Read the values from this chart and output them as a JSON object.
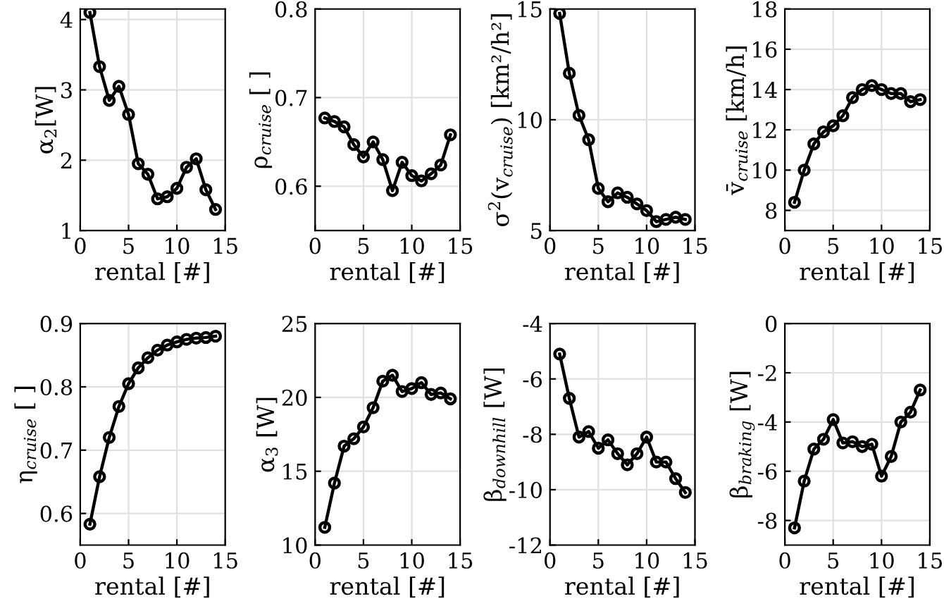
{
  "chart_data": [
    {
      "type": "line",
      "xlabel": "rental [#]",
      "ylabel": "α$_{2}$[W]",
      "x": [
        1,
        2,
        3,
        4,
        5,
        6,
        7,
        8,
        9,
        10,
        11,
        12,
        13,
        14
      ],
      "series": [
        {
          "color": "#000000",
          "values": [
            4.1,
            3.33,
            2.85,
            3.05,
            2.65,
            1.95,
            1.8,
            1.45,
            1.48,
            1.6,
            1.9,
            2.02,
            1.58,
            1.3
          ]
        }
      ],
      "xlim": [
        0,
        15
      ],
      "xticks": [
        0,
        5,
        10,
        15
      ],
      "ylim": [
        1,
        4.15
      ],
      "yticks": [
        1,
        2,
        3,
        4
      ],
      "grid": true,
      "marker": "circle",
      "line_style": "solid"
    },
    {
      "type": "line",
      "xlabel": "rental [#]",
      "ylabel": "ρ$_{cruise}$ [ ]",
      "x": [
        1,
        2,
        3,
        4,
        5,
        6,
        7,
        8,
        9,
        10,
        11,
        12,
        13,
        14
      ],
      "series": [
        {
          "color": "#000000",
          "values": [
            0.677,
            0.673,
            0.667,
            0.647,
            0.633,
            0.65,
            0.63,
            0.595,
            0.627,
            0.612,
            0.606,
            0.614,
            0.624,
            0.658
          ]
        }
      ],
      "xlim": [
        0,
        15
      ],
      "xticks": [
        0,
        5,
        10,
        15
      ],
      "ylim": [
        0.55,
        0.8
      ],
      "yticks": [
        0.6,
        0.7,
        0.8
      ],
      "grid": true,
      "marker": "circle",
      "line_style": "solid"
    },
    {
      "type": "line",
      "xlabel": "rental [#]",
      "ylabel": "σ$^{2}$(v$_{cruise}$) [km²/h²]",
      "x": [
        1,
        2,
        3,
        4,
        5,
        6,
        7,
        8,
        9,
        10,
        11,
        12,
        13,
        14
      ],
      "series": [
        {
          "color": "#000000",
          "values": [
            14.8,
            12.1,
            10.2,
            9.1,
            6.9,
            6.3,
            6.7,
            6.5,
            6.2,
            5.9,
            5.4,
            5.5,
            5.6,
            5.5
          ]
        }
      ],
      "xlim": [
        0,
        15
      ],
      "xticks": [
        0,
        5,
        10,
        15
      ],
      "ylim": [
        5,
        15
      ],
      "yticks": [
        5,
        10,
        15
      ],
      "grid": true,
      "marker": "circle",
      "line_style": "solid"
    },
    {
      "type": "line",
      "xlabel": "rental [#]",
      "ylabel": "v̄$_{cruise}$ [km/h]",
      "x": [
        1,
        2,
        3,
        4,
        5,
        6,
        7,
        8,
        9,
        10,
        11,
        12,
        13,
        14
      ],
      "series": [
        {
          "color": "#000000",
          "values": [
            8.4,
            10.0,
            11.3,
            11.9,
            12.2,
            12.7,
            13.6,
            14.0,
            14.2,
            14.0,
            13.8,
            13.8,
            13.4,
            13.5
          ]
        }
      ],
      "xlim": [
        0,
        15
      ],
      "xticks": [
        0,
        5,
        10,
        15
      ],
      "ylim": [
        7,
        18
      ],
      "yticks": [
        8,
        10,
        12,
        14,
        16,
        18
      ],
      "grid": true,
      "marker": "circle",
      "line_style": "solid"
    },
    {
      "type": "line",
      "xlabel": "rental [#]",
      "ylabel": "η$_{cruise}$ [ ]",
      "x": [
        1,
        2,
        3,
        4,
        5,
        6,
        7,
        8,
        9,
        10,
        11,
        12,
        13,
        14
      ],
      "series": [
        {
          "color": "#000000",
          "values": [
            0.583,
            0.658,
            0.72,
            0.769,
            0.805,
            0.83,
            0.846,
            0.858,
            0.866,
            0.871,
            0.875,
            0.877,
            0.878,
            0.88
          ]
        }
      ],
      "xlim": [
        0,
        15
      ],
      "xticks": [
        0,
        5,
        10,
        15
      ],
      "ylim": [
        0.55,
        0.9
      ],
      "yticks": [
        0.6,
        0.7,
        0.8,
        0.9
      ],
      "grid": true,
      "marker": "circle",
      "line_style": "solid"
    },
    {
      "type": "line",
      "xlabel": "rental [#]",
      "ylabel": "α$_{3}$ [W]",
      "x": [
        1,
        2,
        3,
        4,
        5,
        6,
        7,
        8,
        9,
        10,
        11,
        12,
        13,
        14
      ],
      "series": [
        {
          "color": "#000000",
          "values": [
            11.2,
            14.2,
            16.7,
            17.2,
            18.0,
            19.3,
            21.1,
            21.5,
            20.4,
            20.6,
            21.0,
            20.2,
            20.3,
            19.9
          ]
        }
      ],
      "xlim": [
        0,
        15
      ],
      "xticks": [
        0,
        5,
        10,
        15
      ],
      "ylim": [
        10,
        25
      ],
      "yticks": [
        10,
        15,
        20,
        25
      ],
      "grid": true,
      "marker": "circle",
      "line_style": "solid"
    },
    {
      "type": "line",
      "xlabel": "rental [#]",
      "ylabel": "β$_{downhill}$ [W]",
      "x": [
        1,
        2,
        3,
        4,
        5,
        6,
        7,
        8,
        9,
        10,
        11,
        12,
        13,
        14
      ],
      "series": [
        {
          "color": "#000000",
          "values": [
            -5.1,
            -6.7,
            -8.1,
            -7.9,
            -8.5,
            -8.2,
            -8.7,
            -9.1,
            -8.7,
            -8.1,
            -9.0,
            -9.0,
            -9.6,
            -10.1
          ]
        }
      ],
      "xlim": [
        0,
        15
      ],
      "xticks": [
        0,
        5,
        10,
        15
      ],
      "ylim": [
        -12,
        -4
      ],
      "yticks": [
        {
          "value": -12,
          "label": "-12"
        },
        {
          "value": -10,
          "label": "-10"
        },
        {
          "value": -8,
          "label": "-8"
        },
        {
          "value": -6,
          "label": "-6"
        },
        {
          "value": -4,
          "label": "-4"
        }
      ],
      "grid": true,
      "marker": "circle",
      "line_style": "solid"
    },
    {
      "type": "line",
      "xlabel": "rental [#]",
      "ylabel": "β$_{braking}$ [W]",
      "x": [
        1,
        2,
        3,
        4,
        5,
        6,
        7,
        8,
        9,
        10,
        11,
        12,
        13,
        14
      ],
      "series": [
        {
          "color": "#000000",
          "values": [
            -8.3,
            -6.4,
            -5.1,
            -4.7,
            -3.9,
            -4.85,
            -4.8,
            -5.0,
            -4.9,
            -6.2,
            -5.4,
            -4.0,
            -3.6,
            -2.7
          ]
        }
      ],
      "xlim": [
        0,
        15
      ],
      "xticks": [
        0,
        5,
        10,
        15
      ],
      "ylim": [
        -9,
        0
      ],
      "yticks": [
        {
          "value": -8,
          "label": "-8"
        },
        {
          "value": -6,
          "label": "-6"
        },
        {
          "value": -4,
          "label": "-4"
        },
        {
          "value": -2,
          "label": "-2"
        },
        0
      ],
      "grid": true,
      "marker": "circle",
      "line_style": "solid"
    }
  ]
}
